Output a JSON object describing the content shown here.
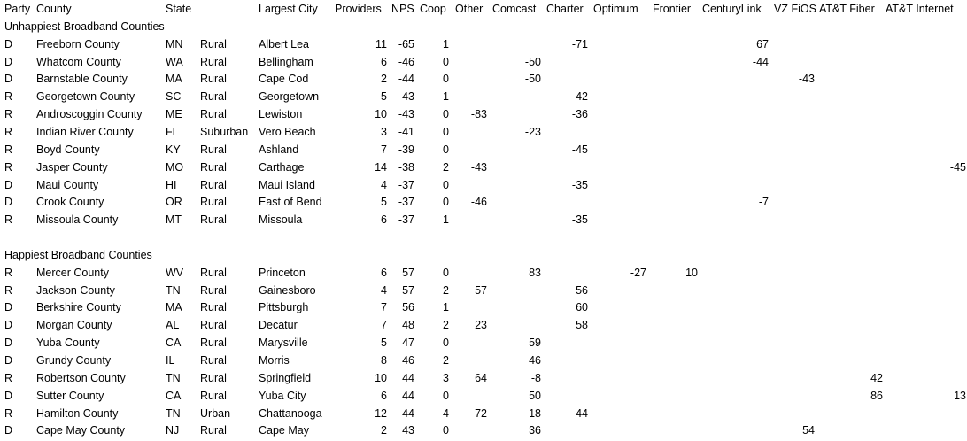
{
  "headers": {
    "party": "Party",
    "county": "County",
    "state": "State",
    "city": "Largest City",
    "providers": "Providers",
    "nps": "NPS",
    "coop": "Coop",
    "other": "Other",
    "comcast": "Comcast",
    "charter": "Charter",
    "optimum": "Optimum",
    "frontier": "Frontier",
    "centurylink": "CenturyLink",
    "vzfios": "VZ FiOS",
    "attfiber": "AT&T Fiber",
    "attinternet": "AT&T Internet"
  },
  "sections": [
    {
      "title": "Unhappiest Broadband Counties",
      "rows": [
        {
          "party": "D",
          "county": "Freeborn County",
          "state": "MN",
          "type": "Rural",
          "city": "Albert Lea",
          "providers": "11",
          "nps": "-65",
          "coop": "1",
          "charter": "-71",
          "centurylink": "67"
        },
        {
          "party": "D",
          "county": "Whatcom County",
          "state": "WA",
          "type": "Rural",
          "city": "Bellingham",
          "providers": "6",
          "nps": "-46",
          "coop": "0",
          "comcast": "-50",
          "centurylink": "-44"
        },
        {
          "party": "D",
          "county": "Barnstable County",
          "state": "MA",
          "type": "Rural",
          "city": "Cape Cod",
          "providers": "2",
          "nps": "-44",
          "coop": "0",
          "comcast": "-50",
          "vzfios": "-43"
        },
        {
          "party": "R",
          "county": "Georgetown County",
          "state": "SC",
          "type": "Rural",
          "city": "Georgetown",
          "providers": "5",
          "nps": "-43",
          "coop": "1",
          "charter": "-42"
        },
        {
          "party": "R",
          "county": "Androscoggin County",
          "state": "ME",
          "type": "Rural",
          "city": "Lewiston",
          "providers": "10",
          "nps": "-43",
          "coop": "0",
          "other": "-83",
          "charter": "-36"
        },
        {
          "party": "R",
          "county": "Indian River County",
          "state": "FL",
          "type": "Suburban",
          "city": "Vero Beach",
          "providers": "3",
          "nps": "-41",
          "coop": "0",
          "comcast": "-23"
        },
        {
          "party": "R",
          "county": "Boyd County",
          "state": "KY",
          "type": "Rural",
          "city": "Ashland",
          "providers": "7",
          "nps": "-39",
          "coop": "0",
          "charter": "-45"
        },
        {
          "party": "R",
          "county": "Jasper County",
          "state": "MO",
          "type": "Rural",
          "city": "Carthage",
          "providers": "14",
          "nps": "-38",
          "coop": "2",
          "other": "-43",
          "attinternet": "-45"
        },
        {
          "party": "D",
          "county": "Maui County",
          "state": "HI",
          "type": "Rural",
          "city": "Maui Island",
          "providers": "4",
          "nps": "-37",
          "coop": "0",
          "charter": "-35"
        },
        {
          "party": "D",
          "county": "Crook County",
          "state": "OR",
          "type": "Rural",
          "city": "East of Bend",
          "providers": "5",
          "nps": "-37",
          "coop": "0",
          "other": "-46",
          "centurylink": "-7"
        },
        {
          "party": "R",
          "county": "Missoula County",
          "state": "MT",
          "type": "Rural",
          "city": "Missoula",
          "providers": "6",
          "nps": "-37",
          "coop": "1",
          "charter": "-35"
        }
      ]
    },
    {
      "title": "Happiest Broadband Counties",
      "rows": [
        {
          "party": "R",
          "county": "Mercer County",
          "state": "WV",
          "type": "Rural",
          "city": "Princeton",
          "providers": "6",
          "nps": "57",
          "coop": "0",
          "comcast": "83",
          "optimum": "-27",
          "frontier": "10"
        },
        {
          "party": "R",
          "county": "Jackson County",
          "state": "TN",
          "type": "Rural",
          "city": "Gainesboro",
          "providers": "4",
          "nps": "57",
          "coop": "2",
          "other": "57",
          "charter": "56"
        },
        {
          "party": "D",
          "county": "Berkshire County",
          "state": "MA",
          "type": "Rural",
          "city": "Pittsburgh",
          "providers": "7",
          "nps": "56",
          "coop": "1",
          "charter": "60"
        },
        {
          "party": "D",
          "county": "Morgan County",
          "state": "AL",
          "type": "Rural",
          "city": "Decatur",
          "providers": "7",
          "nps": "48",
          "coop": "2",
          "other": "23",
          "charter": "58"
        },
        {
          "party": "D",
          "county": "Yuba County",
          "state": "CA",
          "type": "Rural",
          "city": "Marysville",
          "providers": "5",
          "nps": "47",
          "coop": "0",
          "comcast": "59"
        },
        {
          "party": "D",
          "county": "Grundy County",
          "state": "IL",
          "type": "Rural",
          "city": "Morris",
          "providers": "8",
          "nps": "46",
          "coop": "2",
          "comcast": "46"
        },
        {
          "party": "R",
          "county": "Robertson County",
          "state": "TN",
          "type": "Rural",
          "city": "Springfield",
          "providers": "10",
          "nps": "44",
          "coop": "3",
          "other": "64",
          "comcast": "-8",
          "attfiber": "42"
        },
        {
          "party": "D",
          "county": "Sutter County",
          "state": "CA",
          "type": "Rural",
          "city": "Yuba City",
          "providers": "6",
          "nps": "44",
          "coop": "0",
          "comcast": "50",
          "attfiber": "86",
          "attinternet": "13"
        },
        {
          "party": "R",
          "county": "Hamilton County",
          "state": "TN",
          "type": "Urban",
          "city": "Chattanooga",
          "providers": "12",
          "nps": "44",
          "coop": "4",
          "other": "72",
          "comcast": "18",
          "charter": "-44"
        },
        {
          "party": "D",
          "county": "Cape May County",
          "state": "NJ",
          "type": "Rural",
          "city": "Cape May",
          "providers": "2",
          "nps": "43",
          "coop": "0",
          "comcast": "36",
          "vzfios": "54"
        }
      ]
    }
  ]
}
